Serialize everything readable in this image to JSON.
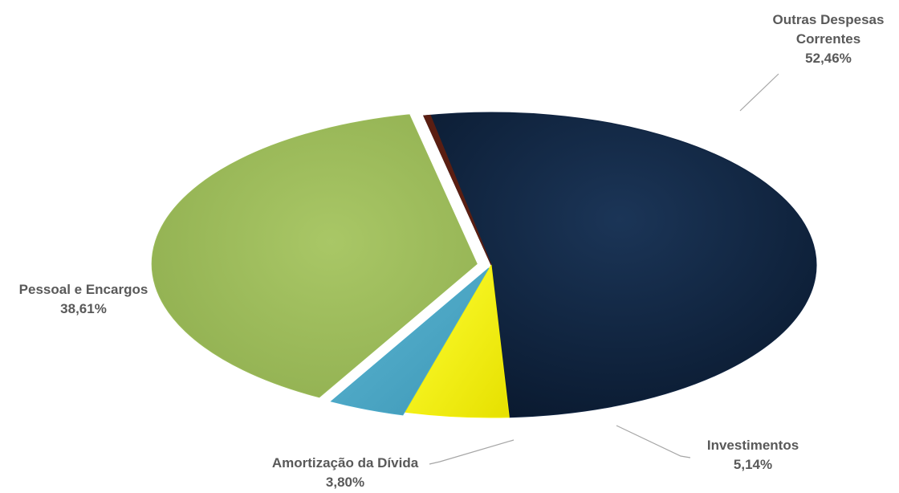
{
  "chart_data": {
    "type": "pie",
    "title": "",
    "slices": [
      {
        "label": "Outras Despesas Correntes",
        "label_lines": [
          "Outras Despesas",
          "Correntes"
        ],
        "value": 52.46,
        "value_text": "52,46%",
        "color": "#0f2340"
      },
      {
        "label": "Investimentos",
        "label_lines": [
          "Investimentos"
        ],
        "value": 5.14,
        "value_text": "5,14%",
        "color": "#f5f000"
      },
      {
        "label": "Amortização da Dívida",
        "label_lines": [
          "Amortização da Dívida"
        ],
        "value": 3.8,
        "value_text": "3,80%",
        "color": "#4aa9c9"
      },
      {
        "label": "Pessoal e Encargos",
        "label_lines": [
          "Pessoal e Encargos"
        ],
        "value": 38.61,
        "value_text": "38,61%",
        "color": "#9bbb59"
      },
      {
        "label": "",
        "label_lines": [],
        "value": 0.0,
        "value_text": "",
        "color": "#5a1e12"
      }
    ],
    "legend": "none",
    "exploded": true,
    "style": "3d-tilted"
  }
}
